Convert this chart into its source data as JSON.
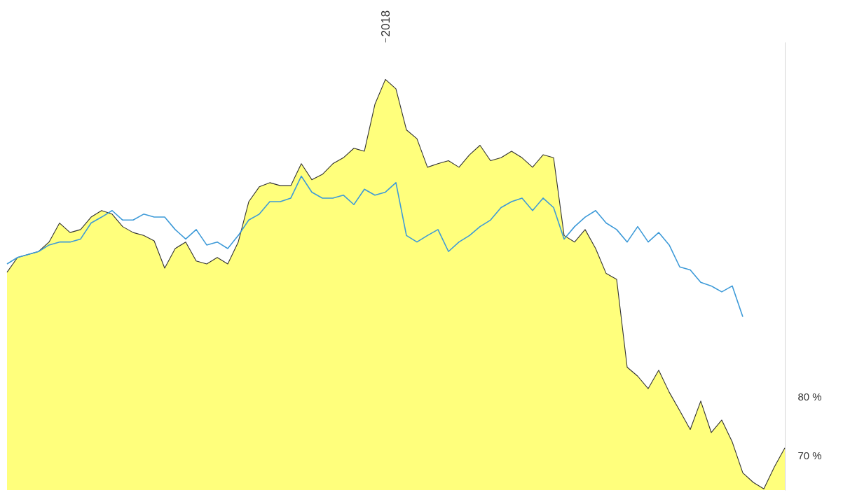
{
  "chart_data": {
    "type": "area",
    "categories": [
      null,
      null,
      null,
      null,
      null,
      null,
      null,
      null,
      null,
      null,
      null,
      null,
      null,
      null,
      null,
      null,
      null,
      null,
      null,
      null,
      null,
      null,
      null,
      null,
      null,
      null,
      null,
      null,
      null,
      null,
      null,
      null,
      null,
      null,
      null,
      null,
      "2018",
      null,
      null,
      null,
      null,
      null,
      null,
      null,
      null,
      null,
      null,
      null,
      null,
      null,
      null,
      null,
      null,
      null,
      null,
      null,
      null,
      null,
      null,
      null,
      null,
      null,
      null,
      null,
      null,
      null,
      null,
      null,
      null,
      null,
      null,
      null,
      null,
      null,
      null
    ],
    "ylim": [
      64.2,
      139.7
    ],
    "yticks": [
      {
        "value": 80,
        "label": "80 %"
      },
      {
        "value": 70,
        "label": "70 %"
      }
    ],
    "grid": false,
    "series": [
      {
        "color": "#ffff44",
        "values": [
          100.9,
          103.4,
          103.9,
          104.4,
          106.0,
          109.2,
          107.6,
          108.1,
          110.2,
          111.3,
          110.7,
          108.6,
          107.6,
          107.1,
          106.2,
          101.6,
          104.9,
          106.0,
          102.8,
          102.3,
          103.4,
          102.3,
          106.0,
          112.8,
          115.3,
          116.0,
          115.5,
          115.5,
          119.2,
          116.5,
          117.4,
          119.2,
          120.2,
          121.8,
          121.3,
          129.2,
          133.4,
          131.8,
          124.9,
          123.4,
          118.6,
          119.2,
          119.7,
          118.6,
          120.7,
          122.3,
          119.7,
          120.2,
          121.3,
          120.2,
          118.6,
          120.7,
          120.2,
          107.1,
          106.0,
          108.1,
          104.9,
          100.7,
          99.7,
          84.9,
          83.4,
          81.3,
          84.4,
          80.7,
          77.6,
          74.4,
          79.2,
          73.9,
          76.0,
          72.3,
          67.1,
          65.5,
          64.4,
          68.1,
          71.3
        ]
      },
      {
        "type": "line",
        "color": "#3d9ad8",
        "values": [
          102.3,
          103.4,
          103.9,
          104.4,
          105.5,
          106.0,
          106.0,
          106.5,
          109.2,
          110.2,
          111.3,
          109.7,
          109.7,
          110.7,
          110.2,
          110.2,
          108.1,
          106.5,
          108.1,
          105.5,
          106.0,
          104.9,
          107.1,
          109.7,
          110.7,
          112.8,
          112.8,
          113.4,
          117.1,
          114.4,
          113.4,
          113.4,
          113.9,
          112.3,
          114.9,
          113.9,
          114.4,
          116.0,
          107.1,
          106.0,
          107.1,
          108.1,
          104.4,
          106.0,
          107.1,
          108.6,
          109.7,
          111.8,
          112.8,
          113.4,
          111.3,
          113.4,
          111.8,
          106.5,
          108.6,
          110.2,
          111.3,
          109.2,
          108.1,
          106.0,
          108.6,
          106.0,
          107.6,
          105.5,
          101.8,
          101.3,
          99.2,
          98.6,
          97.6,
          98.6,
          93.4,
          null,
          null,
          null,
          null
        ]
      }
    ]
  }
}
